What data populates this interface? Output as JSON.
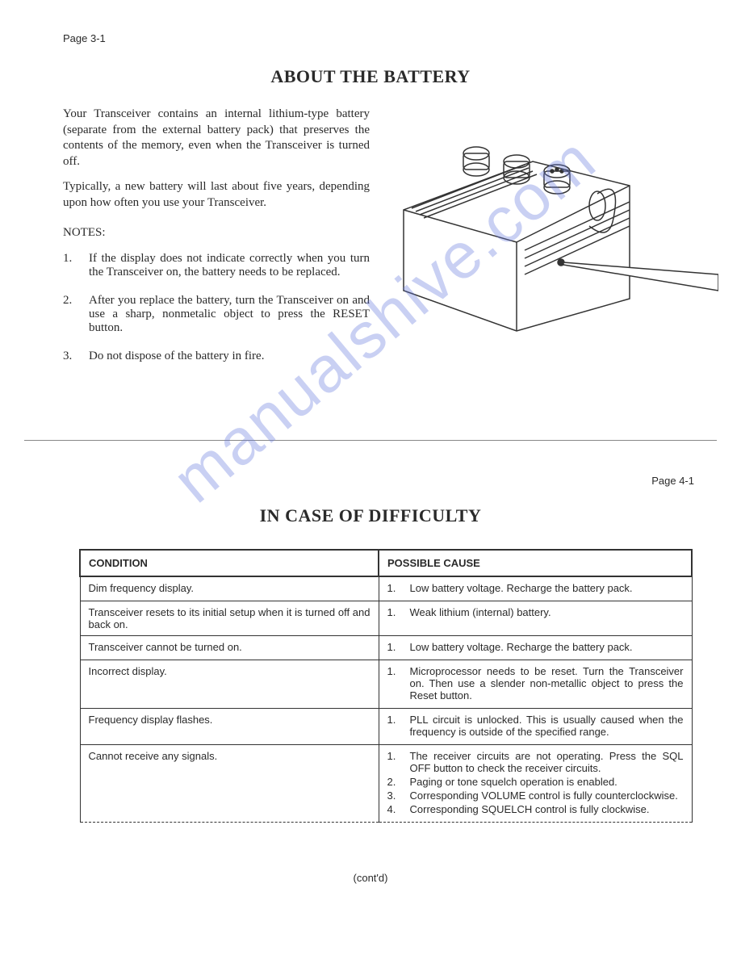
{
  "page_top_label": "Page 3-1",
  "page_mid_label": "Page 4-1",
  "section1_title": "ABOUT THE BATTERY",
  "section2_title": "IN CASE OF DIFFICULTY",
  "para1": "Your Transceiver contains an internal lithium-type battery (separate from the external battery pack) that preserves the contents of the memory, even when the Transceiver is turned off.",
  "para2": "Typically, a new battery will last about five years, depending upon how often you use your Transceiver.",
  "notes_label": "NOTES:",
  "notes": [
    {
      "num": "1.",
      "text": "If the display does not indicate correctly when you turn the Transceiver on, the battery needs to be replaced."
    },
    {
      "num": "2.",
      "text": "After you replace the battery, turn the Transceiver on and use a sharp, nonmetalic object to press the RESET button."
    },
    {
      "num": "3.",
      "text": "Do not dispose of the battery in fire."
    }
  ],
  "watermark": "manualshive.com",
  "table": {
    "headers": [
      "CONDITION",
      "POSSIBLE CAUSE"
    ],
    "rows": [
      {
        "condition": "Dim frequency display.",
        "causes": [
          {
            "n": "1.",
            "t": "Low battery voltage. Recharge the battery pack."
          }
        ]
      },
      {
        "condition": "Transceiver resets to its initial setup when it is turned off and back on.",
        "causes": [
          {
            "n": "1.",
            "t": "Weak lithium (internal) battery."
          }
        ]
      },
      {
        "condition": "Transceiver cannot be turned on.",
        "causes": [
          {
            "n": "1.",
            "t": "Low battery voltage. Recharge the battery pack."
          }
        ]
      },
      {
        "condition": "Incorrect display.",
        "causes": [
          {
            "n": "1.",
            "t": "Microprocessor needs to be reset. Turn the Transceiver on. Then use a slender non-metallic object to press the Reset button."
          }
        ]
      },
      {
        "condition": "Frequency display flashes.",
        "causes": [
          {
            "n": "1.",
            "t": "PLL circuit is unlocked. This is usually caused when the frequency is outside of the specified range."
          }
        ]
      },
      {
        "condition": "Cannot receive any signals.",
        "causes": [
          {
            "n": "1.",
            "t": "The receiver circuits are not operating. Press the SQL OFF button to check the receiver circuits."
          },
          {
            "n": "2.",
            "t": "Paging or tone squelch operation is enabled."
          },
          {
            "n": "3.",
            "t": "Corresponding VOLUME control is fully counterclockwise."
          },
          {
            "n": "4.",
            "t": "Corresponding SQUELCH control is fully clockwise."
          }
        ]
      }
    ]
  },
  "contd": "(cont'd)",
  "colors": {
    "text": "#2a2a2a",
    "watermark": "rgba(100,120,220,0.35)",
    "border": "#333333",
    "background": "#ffffff"
  },
  "fonts": {
    "body_family": "Times New Roman",
    "table_family": "Arial",
    "title_size_pt": 22,
    "body_size_pt": 15,
    "table_size_pt": 13
  }
}
